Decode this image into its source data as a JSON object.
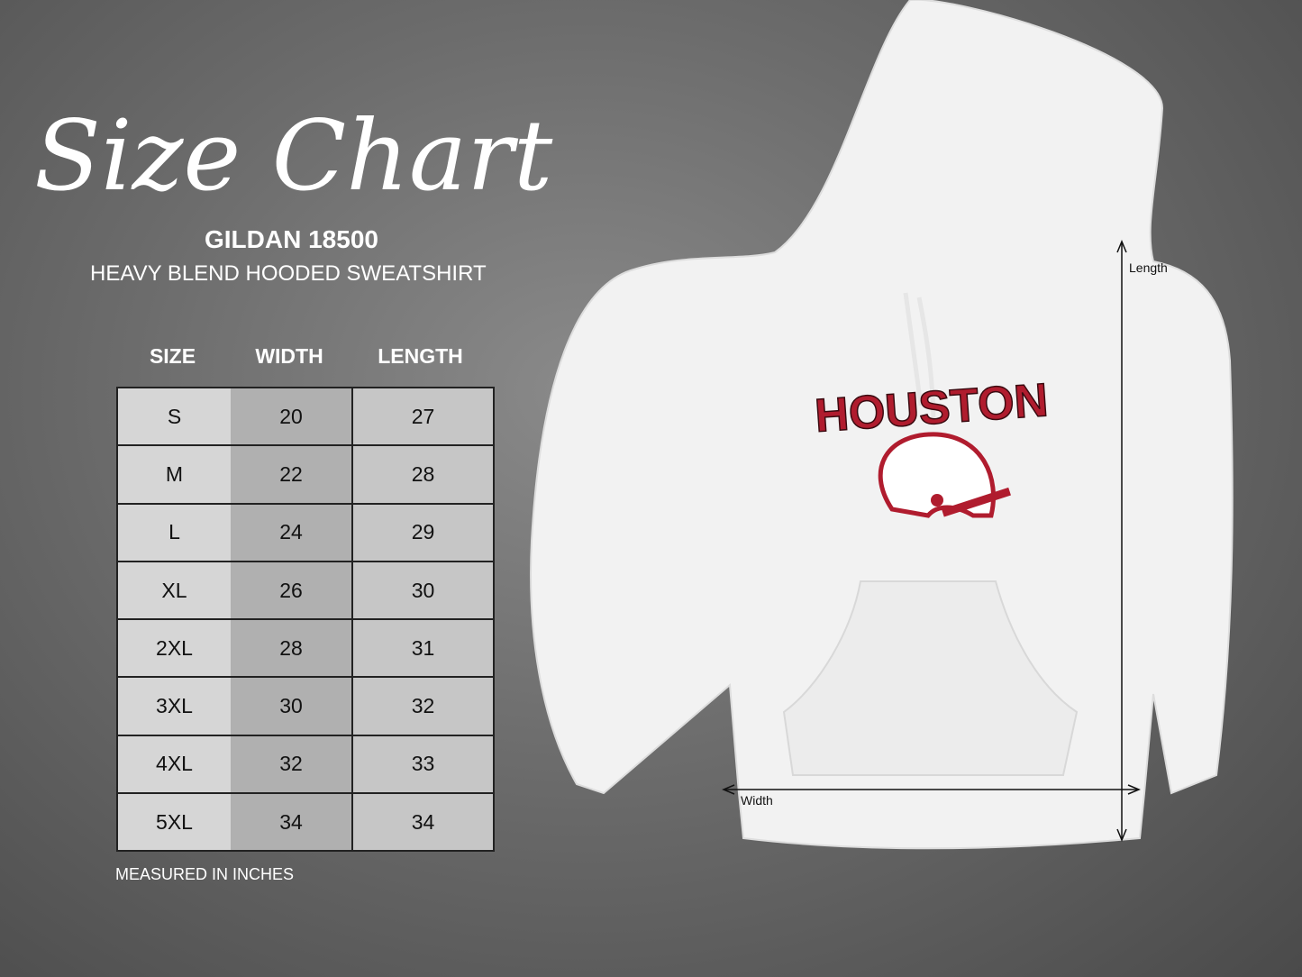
{
  "title": "Size Chart",
  "brand": "GILDAN 18500",
  "product": "HEAVY BLEND HOODED SWEATSHIRT",
  "table": {
    "headers": [
      "SIZE",
      "WIDTH",
      "LENGTH"
    ],
    "rows": [
      [
        "S",
        "20",
        "27"
      ],
      [
        "M",
        "22",
        "28"
      ],
      [
        "L",
        "24",
        "29"
      ],
      [
        "XL",
        "26",
        "30"
      ],
      [
        "2XL",
        "28",
        "31"
      ],
      [
        "3XL",
        "30",
        "32"
      ],
      [
        "4XL",
        "32",
        "33"
      ],
      [
        "5XL",
        "34",
        "34"
      ]
    ]
  },
  "note": "MEASURED IN INCHES",
  "hoodie": {
    "print_text": "HOUSTON",
    "print_color": "#b01c2e",
    "length_label": "Length",
    "width_label": "Width"
  }
}
